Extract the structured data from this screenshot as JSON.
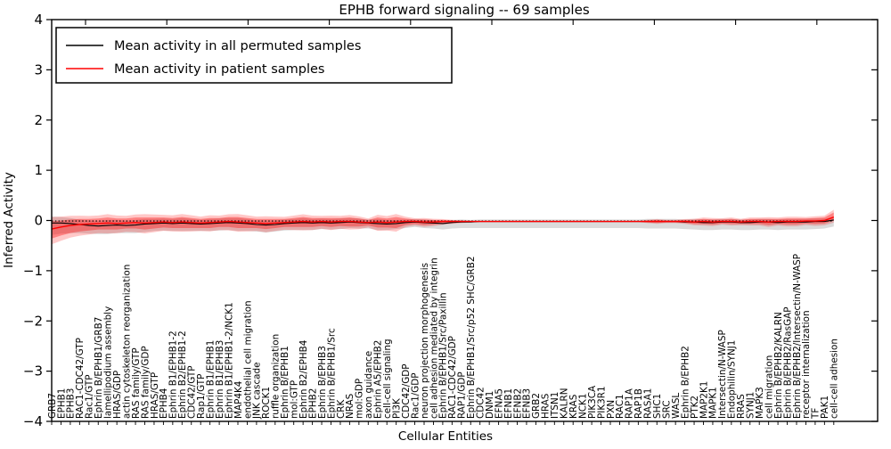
{
  "figure": {
    "title": "EPHB forward signaling -- 69 samples",
    "xlabel": "Cellular Entities",
    "ylabel": "Inferred Activity"
  },
  "chart_data": {
    "type": "line",
    "title": "EPHB forward signaling -- 69 samples",
    "xlabel": "Cellular Entities",
    "ylabel": "Inferred Activity",
    "ylim": [
      -4,
      4
    ],
    "yticks": [
      "4",
      "3",
      "2",
      "1",
      "0",
      "−1",
      "−2",
      "−3",
      "−4"
    ],
    "ytick_values": [
      4,
      3,
      2,
      1,
      0,
      -1,
      -2,
      -3,
      -4
    ],
    "grid": false,
    "legend_position": "upper left",
    "categories": [
      "GRB7",
      "EPHB1",
      "EPHB3",
      "RAC1-CDC42/GTP",
      "Rac1/GTP",
      "Ephrin B/EPHB1/GRB7",
      "lamellipodium assembly",
      "HRAS/GDP",
      "actin cytoskeleton reorganization",
      "RAS family/GTP",
      "RAS family/GDP",
      "HRAS/GTP",
      "EPHB4",
      "Ephrin B1/EPHB1-2",
      "Ephrin B2/EPHB1-2",
      "CDC42/GTP",
      "Rap1/GTP",
      "Ephrin B1/EPHB1",
      "Ephrin B1/EPHB3",
      "Ephrin B1/EPHB1-2/NCK1",
      "MAP4K4",
      "endothelial cell migration",
      "JNK cascade",
      "ROCK1",
      "ruffle organization",
      "Ephrin B/EPHB1",
      "mol:GTP",
      "Ephrin B2/EPHB4",
      "EPHB2",
      "Ephrin B/EPHB3",
      "Ephrin B/EPHB1/Src",
      "CRK",
      "NRAS",
      "mol:GDP",
      "axon guidance",
      "Ephrin A5/EPHB2",
      "cell-cell signaling",
      "PI3K",
      "CDC42/GDP",
      "Rac1/GDP",
      "neuron projection morphogenesis",
      "cell adhesion mediated by integrin",
      "Ephrin B/EPHB1/Src/Paxillin",
      "RAC1-CDC42/GDP",
      "RAP1/GDP",
      "Ephrin B/EPHB1/Src/p52 SHC/GRB2",
      "CDC42",
      "DNM1",
      "EFNA5",
      "EFNB1",
      "EFNB2",
      "EFNB3",
      "GRB2",
      "HRAS",
      "ITSN1",
      "KALRN",
      "KRAS",
      "NCK1",
      "PIK3CA",
      "PIK3R1",
      "PXN",
      "RAC1",
      "RAP1A",
      "RAP1B",
      "RASA1",
      "SHC1",
      "SRC",
      "WASL",
      "Ephrin B/EPHB2",
      "PTK2",
      "MAP2K1",
      "MAPK1",
      "Intersectin/N-WASP",
      "Endophilin/SYNJ1",
      "RRAS",
      "SYNJ1",
      "MAPK3",
      "cell migration",
      "Ephrin B/EPHB2/KALRN",
      "Ephrin B/EPHB2/RasGAP",
      "Ephrin B/EPHB2/Intersectin/N-WASP",
      "receptor internalization",
      "TF",
      "PAK1",
      "cell-cell adhesion"
    ],
    "series": [
      {
        "name": "Mean activity in all permuted samples",
        "color": "#000000",
        "style": "solid",
        "values": [
          -0.05,
          -0.05,
          -0.06,
          -0.08,
          -0.1,
          -0.11,
          -0.1,
          -0.09,
          -0.1,
          -0.09,
          -0.07,
          -0.06,
          -0.05,
          -0.06,
          -0.05,
          -0.06,
          -0.07,
          -0.06,
          -0.05,
          -0.04,
          -0.05,
          -0.06,
          -0.08,
          -0.09,
          -0.08,
          -0.06,
          -0.05,
          -0.04,
          -0.05,
          -0.04,
          -0.05,
          -0.04,
          -0.03,
          -0.04,
          -0.05,
          -0.06,
          -0.07,
          -0.06,
          -0.04,
          -0.03,
          -0.04,
          -0.05,
          -0.06,
          -0.04,
          -0.03,
          -0.03,
          -0.02,
          -0.02,
          -0.02,
          -0.02,
          -0.02,
          -0.02,
          -0.02,
          -0.02,
          -0.02,
          -0.02,
          -0.02,
          -0.02,
          -0.02,
          -0.02,
          -0.02,
          -0.02,
          -0.02,
          -0.02,
          -0.02,
          -0.02,
          -0.02,
          -0.02,
          -0.03,
          -0.03,
          -0.04,
          -0.04,
          -0.03,
          -0.03,
          -0.04,
          -0.04,
          -0.03,
          -0.03,
          -0.04,
          -0.03,
          -0.03,
          -0.03,
          -0.02,
          -0.02,
          0.01
        ]
      },
      {
        "name": "Mean activity in patient samples",
        "color": "#ff0000",
        "style": "solid",
        "values": [
          -0.17,
          -0.13,
          -0.1,
          -0.08,
          -0.07,
          -0.06,
          -0.05,
          -0.06,
          -0.05,
          -0.04,
          -0.05,
          -0.04,
          -0.03,
          -0.04,
          -0.03,
          -0.04,
          -0.05,
          -0.04,
          -0.03,
          -0.02,
          -0.03,
          -0.04,
          -0.05,
          -0.06,
          -0.05,
          -0.04,
          -0.03,
          -0.02,
          -0.03,
          -0.02,
          -0.03,
          -0.02,
          -0.02,
          -0.03,
          -0.04,
          -0.03,
          -0.04,
          -0.03,
          -0.02,
          -0.02,
          -0.03,
          -0.03,
          -0.02,
          -0.02,
          -0.02,
          -0.02,
          -0.02,
          -0.02,
          -0.02,
          -0.02,
          -0.02,
          -0.02,
          -0.02,
          -0.02,
          -0.02,
          -0.02,
          -0.02,
          -0.02,
          -0.02,
          -0.02,
          -0.02,
          -0.02,
          -0.02,
          -0.02,
          -0.02,
          -0.02,
          -0.02,
          -0.02,
          -0.02,
          -0.03,
          -0.02,
          -0.03,
          -0.02,
          -0.02,
          -0.03,
          -0.02,
          -0.02,
          -0.03,
          -0.02,
          -0.02,
          -0.02,
          -0.01,
          -0.01,
          0.0,
          0.07
        ]
      }
    ],
    "reference_line": {
      "value": -0.01,
      "style": "dotted",
      "color": "#000000"
    },
    "bands": {
      "permuted": {
        "series": 0,
        "color": "#999999",
        "opacity": 0.35,
        "up": [
          0.13,
          0.12,
          0.11,
          0.1,
          0.1,
          0.1,
          0.11,
          0.1,
          0.09,
          0.1,
          0.1,
          0.09,
          0.09,
          0.09,
          0.1,
          0.09,
          0.08,
          0.09,
          0.09,
          0.09,
          0.1,
          0.09,
          0.08,
          0.09,
          0.08,
          0.08,
          0.08,
          0.09,
          0.08,
          0.08,
          0.08,
          0.08,
          0.08,
          0.08,
          0.07,
          0.09,
          0.08,
          0.07,
          0.06,
          0.06,
          0.06,
          0.06,
          0.05,
          0.05,
          0.05,
          0.04,
          0.04,
          0.04,
          0.04,
          0.04,
          0.04,
          0.04,
          0.04,
          0.04,
          0.04,
          0.04,
          0.04,
          0.04,
          0.04,
          0.04,
          0.04,
          0.04,
          0.04,
          0.04,
          0.05,
          0.05,
          0.05,
          0.05,
          0.05,
          0.06,
          0.06,
          0.06,
          0.06,
          0.06,
          0.06,
          0.06,
          0.06,
          0.06,
          0.06,
          0.06,
          0.06,
          0.06,
          0.06,
          0.06,
          0.05
        ],
        "down": [
          0.24,
          0.21,
          0.19,
          0.17,
          0.16,
          0.16,
          0.17,
          0.16,
          0.15,
          0.16,
          0.16,
          0.15,
          0.15,
          0.15,
          0.16,
          0.15,
          0.14,
          0.15,
          0.15,
          0.15,
          0.16,
          0.15,
          0.14,
          0.15,
          0.14,
          0.14,
          0.14,
          0.15,
          0.14,
          0.13,
          0.13,
          0.13,
          0.12,
          0.12,
          0.11,
          0.13,
          0.12,
          0.11,
          0.11,
          0.1,
          0.11,
          0.11,
          0.12,
          0.12,
          0.12,
          0.12,
          0.13,
          0.13,
          0.13,
          0.13,
          0.13,
          0.13,
          0.13,
          0.13,
          0.13,
          0.13,
          0.13,
          0.13,
          0.13,
          0.13,
          0.13,
          0.13,
          0.13,
          0.13,
          0.14,
          0.14,
          0.14,
          0.14,
          0.14,
          0.15,
          0.15,
          0.15,
          0.15,
          0.15,
          0.15,
          0.15,
          0.15,
          0.15,
          0.15,
          0.15,
          0.15,
          0.15,
          0.15,
          0.14,
          0.13
        ]
      },
      "patient": {
        "series": 1,
        "color": "#ff0000",
        "opacity_inner": 0.35,
        "opacity_outer": 0.22,
        "outer_scale": 1.6,
        "up": [
          0.15,
          0.13,
          0.12,
          0.11,
          0.1,
          0.1,
          0.11,
          0.1,
          0.09,
          0.1,
          0.11,
          0.1,
          0.09,
          0.09,
          0.1,
          0.09,
          0.08,
          0.09,
          0.08,
          0.09,
          0.1,
          0.09,
          0.08,
          0.09,
          0.08,
          0.07,
          0.08,
          0.09,
          0.08,
          0.07,
          0.08,
          0.07,
          0.08,
          0.07,
          0.05,
          0.09,
          0.08,
          0.1,
          0.06,
          0.04,
          0.05,
          0.04,
          0.03,
          0.02,
          0.015,
          0.01,
          0.008,
          0.008,
          0.008,
          0.008,
          0.008,
          0.008,
          0.008,
          0.008,
          0.008,
          0.008,
          0.008,
          0.008,
          0.008,
          0.008,
          0.008,
          0.008,
          0.008,
          0.008,
          0.02,
          0.03,
          0.02,
          0.02,
          0.03,
          0.04,
          0.05,
          0.05,
          0.04,
          0.05,
          0.04,
          0.05,
          0.05,
          0.06,
          0.05,
          0.06,
          0.06,
          0.05,
          0.06,
          0.06,
          0.09
        ],
        "down": [
          0.19,
          0.17,
          0.15,
          0.14,
          0.13,
          0.12,
          0.13,
          0.12,
          0.11,
          0.12,
          0.13,
          0.12,
          0.11,
          0.11,
          0.12,
          0.11,
          0.1,
          0.11,
          0.1,
          0.11,
          0.12,
          0.11,
          0.1,
          0.11,
          0.1,
          0.09,
          0.1,
          0.11,
          0.1,
          0.09,
          0.1,
          0.09,
          0.1,
          0.09,
          0.06,
          0.11,
          0.1,
          0.12,
          0.07,
          0.05,
          0.06,
          0.05,
          0.04,
          0.03,
          0.02,
          0.012,
          0.008,
          0.008,
          0.008,
          0.008,
          0.008,
          0.008,
          0.008,
          0.008,
          0.008,
          0.008,
          0.008,
          0.008,
          0.008,
          0.008,
          0.008,
          0.008,
          0.008,
          0.008,
          0.02,
          0.03,
          0.02,
          0.02,
          0.03,
          0.04,
          0.05,
          0.05,
          0.04,
          0.05,
          0.04,
          0.05,
          0.05,
          0.06,
          0.05,
          0.06,
          0.06,
          0.05,
          0.06,
          0.06,
          0.07
        ]
      }
    }
  }
}
